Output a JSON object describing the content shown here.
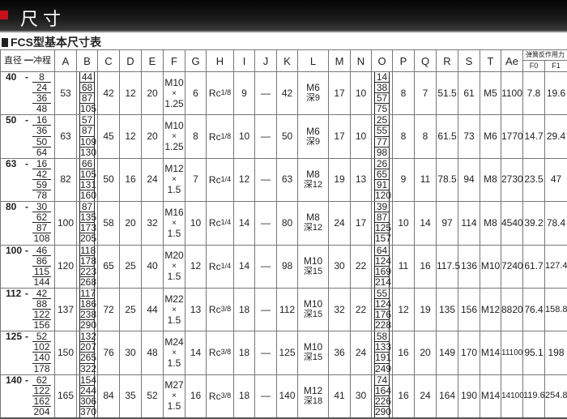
{
  "header": {
    "title": "尺寸",
    "subtitle": "FCS型基本尺寸表"
  },
  "columns": [
    "直径 ━冲程",
    "A",
    "B",
    "C",
    "D",
    "E",
    "F",
    "G",
    "H",
    "I",
    "J",
    "K",
    "L",
    "M",
    "N",
    "O",
    "P",
    "Q",
    "R",
    "S",
    "T",
    "Ae"
  ],
  "spring_header": {
    "label": "弹簧反作用力",
    "f0": "F0",
    "f1": "F1"
  },
  "rows": [
    {
      "bore": "40",
      "strokes": [
        "8",
        "24",
        "36",
        "48"
      ],
      "A": "53",
      "B": [
        "44",
        "68",
        "87",
        "105"
      ],
      "C": "42",
      "D": "12",
      "E": "20",
      "F": [
        "M10",
        "×",
        "1.25"
      ],
      "G": "6",
      "H": "Rc",
      "H_frac": "1/8",
      "I": "9",
      "J": "—",
      "K": "42",
      "L": [
        "M6",
        "深9"
      ],
      "M": "17",
      "N": "10",
      "O": [
        "14",
        "38",
        "57",
        "75"
      ],
      "P": "8",
      "Q": "7",
      "R": "51.5",
      "S": "61",
      "T": "M5",
      "Ae": "1100",
      "F0": "7.8",
      "F1": "19.6"
    },
    {
      "bore": "50",
      "strokes": [
        "16",
        "36",
        "50",
        "64"
      ],
      "A": "63",
      "B": [
        "57",
        "87",
        "109",
        "130"
      ],
      "C": "45",
      "D": "12",
      "E": "20",
      "F": [
        "M10",
        "×",
        "1.25"
      ],
      "G": "8",
      "H": "Rc",
      "H_frac": "1/8",
      "I": "10",
      "J": "—",
      "K": "50",
      "L": [
        "M6",
        "深9"
      ],
      "M": "17",
      "N": "10",
      "O": [
        "25",
        "55",
        "77",
        "98"
      ],
      "P": "8",
      "Q": "8",
      "R": "61.5",
      "S": "73",
      "T": "M6",
      "Ae": "1770",
      "F0": "14.7",
      "F1": "29.4"
    },
    {
      "bore": "63",
      "strokes": [
        "16",
        "42",
        "59",
        "78"
      ],
      "A": "82",
      "B": [
        "66",
        "105",
        "131",
        "160"
      ],
      "C": "50",
      "D": "16",
      "E": "24",
      "F": [
        "M12",
        "×",
        "1.5"
      ],
      "G": "7",
      "H": "Rc",
      "H_frac": "1/4",
      "I": "12",
      "J": "—",
      "K": "63",
      "L": [
        "M8",
        "深12"
      ],
      "M": "19",
      "N": "13",
      "O": [
        "26",
        "65",
        "91",
        "120"
      ],
      "P": "9",
      "Q": "11",
      "R": "78.5",
      "S": "94",
      "T": "M8",
      "Ae": "2730",
      "F0": "23.5",
      "F1": "47"
    },
    {
      "bore": "80",
      "strokes": [
        "30",
        "62",
        "87",
        "108"
      ],
      "A": "100",
      "B": [
        "87",
        "135",
        "173",
        "205"
      ],
      "C": "58",
      "D": "20",
      "E": "32",
      "F": [
        "M16",
        "×",
        "1.5"
      ],
      "G": "10",
      "H": "Rc",
      "H_frac": "1/4",
      "I": "14",
      "J": "—",
      "K": "80",
      "L": [
        "M8",
        "深12"
      ],
      "M": "24",
      "N": "17",
      "O": [
        "39",
        "87",
        "125",
        "157"
      ],
      "P": "10",
      "Q": "14",
      "R": "97",
      "S": "114",
      "T": "M8",
      "Ae": "4540",
      "F0": "39.2",
      "F1": "78.4"
    },
    {
      "bore": "100",
      "strokes": [
        "46",
        "86",
        "115",
        "144"
      ],
      "A": "120",
      "B": [
        "118",
        "178",
        "223",
        "268"
      ],
      "C": "65",
      "D": "25",
      "E": "40",
      "F": [
        "M20",
        "×",
        "1.5"
      ],
      "G": "12",
      "H": "Rc",
      "H_frac": "1/4",
      "I": "14",
      "J": "—",
      "K": "98",
      "L": [
        "M10",
        "深15"
      ],
      "M": "30",
      "N": "22",
      "O": [
        "64",
        "124",
        "169",
        "214"
      ],
      "P": "11",
      "Q": "16",
      "R": "117.5",
      "S": "136",
      "T": "M10",
      "Ae": "7240",
      "F0": "61.7",
      "F1": "127.4"
    },
    {
      "bore": "112",
      "strokes": [
        "42",
        "88",
        "122",
        "156"
      ],
      "A": "137",
      "B": [
        "117",
        "186",
        "238",
        "290"
      ],
      "C": "72",
      "D": "25",
      "E": "44",
      "F": [
        "M22",
        "×",
        "1.5"
      ],
      "G": "13",
      "H": "Rc",
      "H_frac": "3/8",
      "I": "18",
      "J": "—",
      "K": "112",
      "L": [
        "M10",
        "深15"
      ],
      "M": "32",
      "N": "22",
      "O": [
        "55",
        "124",
        "176",
        "228"
      ],
      "P": "12",
      "Q": "19",
      "R": "135",
      "S": "156",
      "T": "M12",
      "Ae": "8820",
      "F0": "76.4",
      "F1": "158.8"
    },
    {
      "bore": "125",
      "strokes": [
        "52",
        "102",
        "140",
        "178"
      ],
      "A": "150",
      "B": [
        "132",
        "207",
        "265",
        "322"
      ],
      "C": "76",
      "D": "30",
      "E": "48",
      "F": [
        "M24",
        "×",
        "1.5"
      ],
      "G": "14",
      "H": "Rc",
      "H_frac": "3/8",
      "I": "18",
      "J": "—",
      "K": "125",
      "L": [
        "M10",
        "深15"
      ],
      "M": "36",
      "N": "24",
      "O": [
        "58",
        "133",
        "191",
        "249"
      ],
      "P": "16",
      "Q": "20",
      "R": "149",
      "S": "170",
      "T": "M14",
      "Ae": "11100",
      "F0": "95.1",
      "F1": "198"
    },
    {
      "bore": "140",
      "strokes": [
        "62",
        "122",
        "162",
        "204"
      ],
      "A": "165",
      "B": [
        "154",
        "244",
        "306",
        "370"
      ],
      "C": "84",
      "D": "35",
      "E": "52",
      "F": [
        "M27",
        "×",
        "1.5"
      ],
      "G": "16",
      "H": "Rc",
      "H_frac": "3/8",
      "I": "18",
      "J": "—",
      "K": "140",
      "L": [
        "M12",
        "深18"
      ],
      "M": "41",
      "N": "30",
      "O": [
        "74",
        "164",
        "226",
        "290"
      ],
      "P": "16",
      "Q": "24",
      "R": "164",
      "S": "190",
      "T": "M14",
      "Ae": "14100",
      "F0": "119.6",
      "F1": "254.8"
    }
  ]
}
